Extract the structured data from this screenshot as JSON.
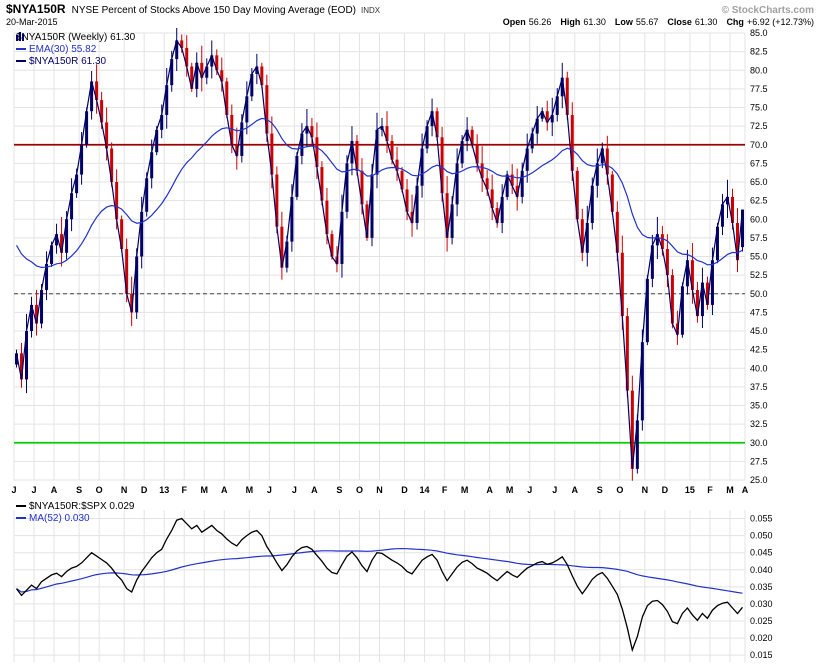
{
  "header": {
    "symbol": "$NYA150R",
    "title": "NYSE Percent of Stocks Above 150 Day Moving Average (EOD)",
    "exchange": "INDX",
    "copyright": "© StockCharts.com",
    "date": "20-Mar-2015",
    "quote": [
      {
        "label": "Open",
        "value": "56.26"
      },
      {
        "label": "High",
        "value": "61.30"
      },
      {
        "label": "Low",
        "value": "55.67"
      },
      {
        "label": "Close",
        "value": "61.30"
      },
      {
        "label": "Chg",
        "value": "+6.92 (+12.73%)"
      }
    ]
  },
  "colors": {
    "up": "#000066",
    "down": "#cc0000",
    "close_line": "#000066",
    "ema": "#2233cc",
    "overbought": "#990000",
    "oversold": "#00cc00",
    "midline": "#444444",
    "ratio": "#000000",
    "ma": "#2233cc",
    "grid": "#e3e3e3",
    "axis_text": "#000000"
  },
  "chart_data": [
    {
      "type": "candlestick",
      "title": "$NYA150R (Weekly)",
      "legend": {
        "series": "$NYA150R (Weekly) 61.30",
        "ema": "EMA(30) 55.82",
        "close": "$NYA150R 61.30"
      },
      "ylim": [
        25.0,
        85.0
      ],
      "ytick": 2.5,
      "grid": true,
      "hlines": [
        {
          "value": 70.0,
          "color": "#990000",
          "width": 1.8
        },
        {
          "value": 50.0,
          "color": "#444444",
          "width": 1,
          "dash": "4,3"
        },
        {
          "value": 30.0,
          "color": "#00cc00",
          "width": 1.8
        }
      ],
      "ema": {
        "period": 30,
        "seed": 57.5,
        "last_label": 55.82
      },
      "last_bar": {
        "open": 56.26,
        "high": 61.3,
        "low": 55.67,
        "close": 61.3
      },
      "months": [
        {
          "label": "J",
          "week": 0
        },
        {
          "label": "J",
          "week": 4
        },
        {
          "label": "A",
          "week": 8
        },
        {
          "label": "S",
          "week": 13
        },
        {
          "label": "O",
          "week": 17
        },
        {
          "label": "N",
          "week": 22
        },
        {
          "label": "D",
          "week": 26
        },
        {
          "label": "13",
          "week": 30,
          "bold": true
        },
        {
          "label": "F",
          "week": 34
        },
        {
          "label": "M",
          "week": 38
        },
        {
          "label": "A",
          "week": 42
        },
        {
          "label": "M",
          "week": 47
        },
        {
          "label": "J",
          "week": 51
        },
        {
          "label": "J",
          "week": 56
        },
        {
          "label": "A",
          "week": 60
        },
        {
          "label": "S",
          "week": 65
        },
        {
          "label": "O",
          "week": 69
        },
        {
          "label": "N",
          "week": 73
        },
        {
          "label": "D",
          "week": 78
        },
        {
          "label": "14",
          "week": 82,
          "bold": true
        },
        {
          "label": "F",
          "week": 86
        },
        {
          "label": "M",
          "week": 90
        },
        {
          "label": "A",
          "week": 95
        },
        {
          "label": "M",
          "week": 99
        },
        {
          "label": "J",
          "week": 103
        },
        {
          "label": "J",
          "week": 108
        },
        {
          "label": "A",
          "week": 112
        },
        {
          "label": "S",
          "week": 117
        },
        {
          "label": "O",
          "week": 121
        },
        {
          "label": "N",
          "week": 126
        },
        {
          "label": "D",
          "week": 130
        },
        {
          "label": "15",
          "week": 135,
          "bold": true
        },
        {
          "label": "F",
          "week": 139
        },
        {
          "label": "M",
          "week": 143
        },
        {
          "label": "A",
          "week": 146
        }
      ],
      "closes": [
        42.0,
        38.5,
        45.0,
        48.5,
        46.0,
        50.5,
        54.0,
        56.5,
        58.0,
        55.5,
        60.0,
        63.5,
        66.0,
        70.0,
        74.5,
        78.5,
        76.0,
        73.0,
        69.5,
        65.0,
        60.0,
        56.0,
        50.0,
        47.5,
        55.0,
        61.0,
        65.5,
        69.0,
        72.0,
        74.0,
        78.0,
        81.5,
        84.0,
        83.0,
        80.5,
        77.5,
        81.0,
        79.0,
        80.5,
        82.0,
        80.0,
        78.5,
        74.0,
        70.0,
        68.5,
        73.0,
        76.5,
        79.5,
        80.5,
        78.0,
        71.5,
        66.0,
        59.0,
        53.5,
        57.0,
        63.0,
        68.5,
        71.5,
        72.5,
        71.0,
        67.0,
        62.5,
        58.0,
        55.0,
        54.0,
        61.0,
        67.5,
        70.5,
        66.5,
        62.0,
        57.5,
        66.0,
        72.0,
        72.5,
        70.5,
        68.0,
        66.5,
        64.0,
        61.0,
        59.5,
        64.5,
        69.5,
        72.5,
        74.5,
        71.0,
        63.5,
        57.5,
        62.0,
        67.5,
        70.5,
        72.0,
        70.0,
        67.5,
        65.5,
        64.0,
        61.5,
        59.5,
        63.0,
        66.0,
        64.5,
        63.0,
        66.5,
        69.5,
        71.5,
        73.5,
        74.5,
        73.0,
        74.0,
        76.5,
        79.0,
        74.0,
        66.5,
        60.0,
        55.5,
        59.5,
        64.5,
        67.5,
        69.5,
        66.0,
        61.0,
        55.5,
        47.0,
        37.0,
        26.5,
        33.0,
        43.5,
        52.0,
        56.5,
        58.0,
        56.0,
        52.5,
        46.0,
        44.5,
        51.0,
        54.5,
        50.5,
        47.0,
        51.5,
        48.5,
        54.5,
        59.0,
        62.0,
        63.0,
        59.5,
        54.5,
        61.3
      ]
    },
    {
      "type": "line",
      "title": "$NYA150R:$SPX",
      "legend": {
        "ratio": "$NYA150R:$SPX 0.029",
        "ma": "MA(52) 0.030"
      },
      "ylim": [
        0.013,
        0.0575
      ],
      "yticks": {
        "from": 0.015,
        "to": 0.055,
        "step": 0.005
      },
      "grid": true,
      "ma": {
        "period": 52,
        "last_label": 0.03
      },
      "values": [
        0.0345,
        0.0325,
        0.034,
        0.0355,
        0.0345,
        0.0365,
        0.0375,
        0.0385,
        0.039,
        0.038,
        0.0395,
        0.0405,
        0.041,
        0.042,
        0.0435,
        0.045,
        0.044,
        0.043,
        0.042,
        0.0405,
        0.0385,
        0.037,
        0.0345,
        0.0335,
        0.037,
        0.0395,
        0.0415,
        0.0435,
        0.045,
        0.046,
        0.049,
        0.0515,
        0.0545,
        0.055,
        0.0535,
        0.052,
        0.053,
        0.051,
        0.052,
        0.053,
        0.0515,
        0.0505,
        0.049,
        0.0478,
        0.047,
        0.0488,
        0.05,
        0.051,
        0.0515,
        0.05,
        0.0468,
        0.0445,
        0.042,
        0.0398,
        0.0415,
        0.0438,
        0.0455,
        0.0465,
        0.0468,
        0.046,
        0.0442,
        0.0425,
        0.0405,
        0.0392,
        0.0388,
        0.0415,
        0.044,
        0.0452,
        0.0435,
        0.0412,
        0.0395,
        0.0428,
        0.045,
        0.0448,
        0.0438,
        0.0428,
        0.042,
        0.041,
        0.0395,
        0.0388,
        0.0408,
        0.0428,
        0.0438,
        0.0445,
        0.0428,
        0.0395,
        0.0368,
        0.0388,
        0.0408,
        0.0422,
        0.0428,
        0.0418,
        0.0405,
        0.0398,
        0.039,
        0.0378,
        0.0368,
        0.0382,
        0.0395,
        0.0385,
        0.0378,
        0.0392,
        0.0405,
        0.0412,
        0.042,
        0.0424,
        0.0416,
        0.042,
        0.0428,
        0.0438,
        0.0415,
        0.0382,
        0.0352,
        0.033,
        0.035,
        0.0372,
        0.0385,
        0.0392,
        0.0375,
        0.0352,
        0.0328,
        0.0285,
        0.023,
        0.0165,
        0.0205,
        0.0262,
        0.0295,
        0.0308,
        0.031,
        0.0298,
        0.0278,
        0.0248,
        0.0242,
        0.0272,
        0.0288,
        0.0268,
        0.0252,
        0.0272,
        0.0258,
        0.0282,
        0.0295,
        0.0302,
        0.0305,
        0.0288,
        0.0272,
        0.029
      ]
    }
  ]
}
